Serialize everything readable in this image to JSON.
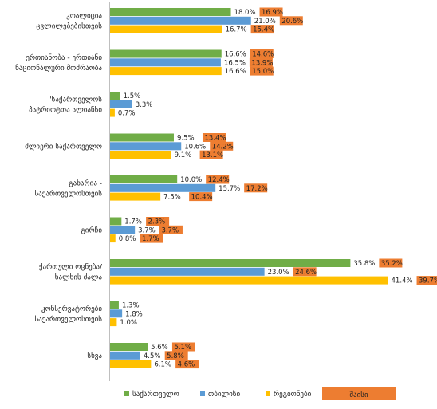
{
  "chart_data": {
    "type": "bar",
    "orientation": "horizontal",
    "title": "",
    "xlabel": "",
    "ylabel": "",
    "xlim": [
      0,
      43
    ],
    "grid": false,
    "legend_position": "bottom",
    "categories": [
      [
        "კოალიცია",
        "ცვლილებებისთვის"
      ],
      [
        "ერთიანობა - ერთიანი",
        "ნაციონალური მოძრაობა"
      ],
      [
        "'საქართველოს",
        "პატრიოტთა ალიანსი"
      ],
      [
        "ძლიერი საქართველო"
      ],
      [
        "გახარია -",
        "საქართველოსთვის"
      ],
      [
        "გირჩი"
      ],
      [
        "ქართული ოცნება/",
        "ხალხის ძალა"
      ],
      [
        "კონსერვატორები",
        "საქართველოსთვის"
      ],
      [
        "სხვა"
      ]
    ],
    "series": [
      {
        "name": "საქართველო",
        "color": "#70ad47",
        "values": [
          18.0,
          16.6,
          1.5,
          9.5,
          10.0,
          1.7,
          35.8,
          1.3,
          5.6
        ]
      },
      {
        "name": "თბილისი",
        "color": "#5b9bd5",
        "values": [
          21.0,
          16.5,
          3.3,
          10.6,
          15.7,
          3.7,
          23.0,
          1.8,
          4.5
        ]
      },
      {
        "name": "რეგიონები",
        "color": "#ffc000",
        "values": [
          16.7,
          16.6,
          0.7,
          9.1,
          7.5,
          0.8,
          41.4,
          1.0,
          6.1
        ]
      }
    ],
    "poll": {
      "name": "შაისი",
      "color": "#ed7d31",
      "values": [
        [
          16.9,
          20.6,
          15.4
        ],
        [
          14.6,
          13.9,
          15.0
        ],
        [
          null,
          null,
          null
        ],
        [
          13.4,
          14.2,
          13.1
        ],
        [
          12.4,
          17.2,
          10.4
        ],
        [
          2.3,
          3.7,
          1.7
        ],
        [
          35.2,
          24.6,
          39.7
        ],
        [
          null,
          null,
          null
        ],
        [
          5.1,
          5.8,
          4.6
        ]
      ]
    }
  }
}
